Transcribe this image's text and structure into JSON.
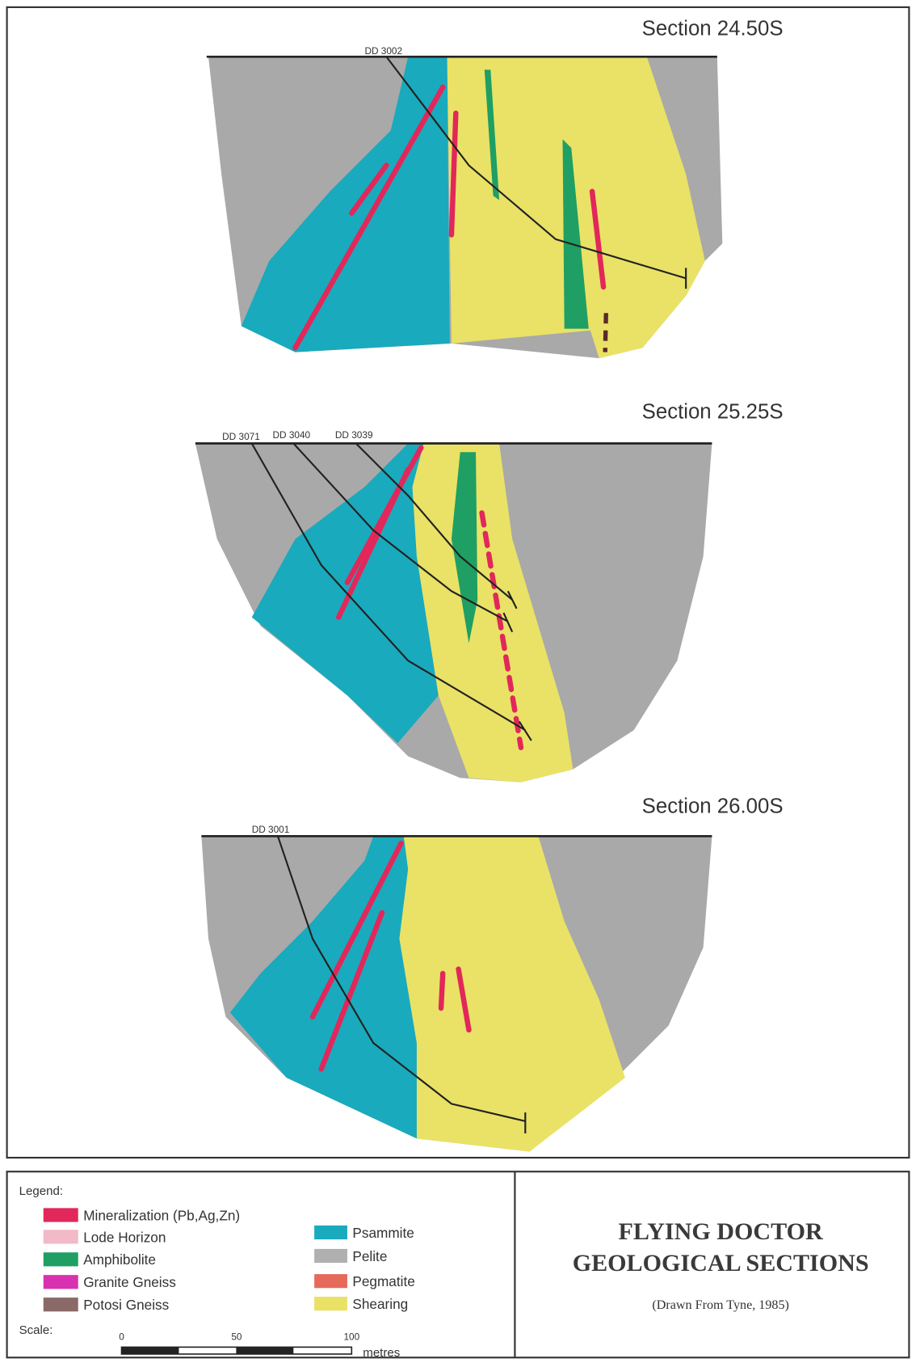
{
  "sections": [
    {
      "title": "Section 24.50S",
      "drill_holes": [
        "DD 3002"
      ]
    },
    {
      "title": "Section 25.25S",
      "drill_holes": [
        "DD 3071",
        "DD 3040",
        "DD 3039"
      ]
    },
    {
      "title": "Section 26.00S",
      "drill_holes": [
        "DD 3001"
      ]
    }
  ],
  "legend": {
    "title": "Legend:",
    "items": [
      {
        "label": "Mineralization (Pb,Ag,Zn)",
        "color": "#e2275a"
      },
      {
        "label": "Lode Horizon",
        "color": "#f2b9c8"
      },
      {
        "label": "Amphibolite",
        "color": "#1f9f63"
      },
      {
        "label": "Granite Gneiss",
        "color": "#d832b0"
      },
      {
        "label": "Potosi Gneiss",
        "color": "#8a6a68"
      },
      {
        "label": "Psammite",
        "color": "#19aabd"
      },
      {
        "label": "Pelite",
        "color": "#b0b0b0"
      },
      {
        "label": "Pegmatite",
        "color": "#e66a5c"
      },
      {
        "label": "Shearing",
        "color": "#e9e266"
      }
    ]
  },
  "scale": {
    "label": "Scale:",
    "ticks": [
      "0",
      "50",
      "100"
    ],
    "unit": "metres"
  },
  "title_block": {
    "title_lines": [
      "FLYING DOCTOR",
      "GEOLOGICAL SECTIONS"
    ],
    "source": "(Drawn From Tyne, 1985)"
  }
}
